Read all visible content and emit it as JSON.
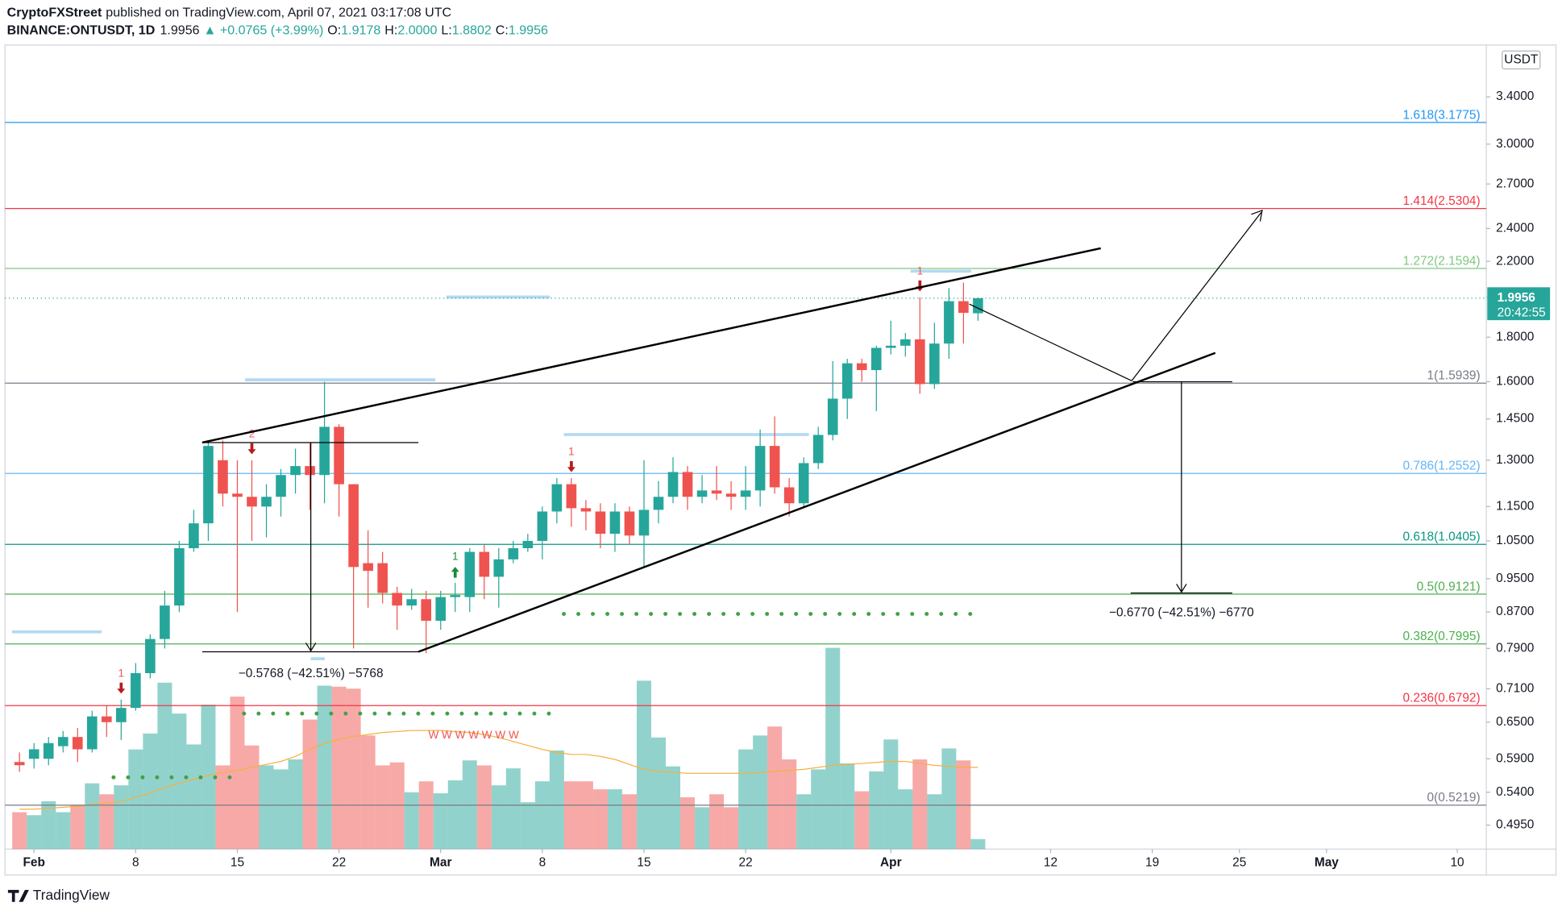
{
  "header": {
    "author": "CryptoFXStreet",
    "published": "published on TradingView.com, April 07, 2021 03:17:08 UTC",
    "symbol": "BINANCE:ONTUSDT, 1D",
    "last": "1.9956",
    "change": "▲ +0.0765 (+3.99%)",
    "ohlc_labels": [
      "O:",
      "H:",
      "L:",
      "C:"
    ],
    "ohlc_values": [
      "1.9178",
      "2.0000",
      "1.8802",
      "1.9956"
    ]
  },
  "footer": "TradingView",
  "chart_data": {
    "type": "candlestick",
    "currency": "USDT",
    "log_scale": true,
    "up_color": "#26a69a",
    "down_color": "#ef5350",
    "xlim": [
      "Jan 30",
      "May 12"
    ],
    "ylim": [
      0.4646,
      3.9
    ],
    "vlim": [
      0,
      220
    ],
    "xticks": [
      {
        "value": "Feb 1",
        "label": "Feb"
      },
      {
        "value": "Feb 8",
        "label": "8"
      },
      {
        "value": "Feb 15",
        "label": "15"
      },
      {
        "value": "Feb 22",
        "label": "22"
      },
      {
        "value": "Mar 1",
        "label": "Mar"
      },
      {
        "value": "Mar 8",
        "label": "8"
      },
      {
        "value": "Mar 15",
        "label": "15"
      },
      {
        "value": "Mar 22",
        "label": "22"
      },
      {
        "value": "Apr 1",
        "label": "Apr"
      },
      {
        "value": "Apr 12",
        "label": "12"
      },
      {
        "value": "Apr 19",
        "label": "19"
      },
      {
        "value": "Apr 25",
        "label": "25"
      },
      {
        "value": "May 1",
        "label": "May"
      },
      {
        "value": "May 10",
        "label": "10"
      }
    ],
    "yticks": [
      {
        "value": 0.495,
        "label": "0.4950"
      },
      {
        "value": 0.54,
        "label": "0.5400"
      },
      {
        "value": 0.59,
        "label": "0.5900"
      },
      {
        "value": 0.65,
        "label": "0.6500"
      },
      {
        "value": 0.71,
        "label": "0.7100"
      },
      {
        "value": 0.79,
        "label": "0.7900"
      },
      {
        "value": 0.87,
        "label": "0.8700"
      },
      {
        "value": 0.95,
        "label": "0.9500"
      },
      {
        "value": 1.05,
        "label": "1.0500"
      },
      {
        "value": 1.15,
        "label": "1.1500"
      },
      {
        "value": 1.3,
        "label": "1.3000"
      },
      {
        "value": 1.45,
        "label": "1.4500"
      },
      {
        "value": 1.6,
        "label": "1.6000"
      },
      {
        "value": 1.8,
        "label": "1.8000"
      },
      {
        "value": 2,
        "label": "2.0000"
      },
      {
        "value": 2.2,
        "label": "2.2000"
      },
      {
        "value": 2.4,
        "label": "2.4000"
      },
      {
        "value": 2.7,
        "label": "2.7000"
      },
      {
        "value": 3,
        "label": "3.0000"
      },
      {
        "value": 3.4,
        "label": "3.4000"
      }
    ],
    "x": [
      "Jan 31",
      "Feb 1",
      "Feb 2",
      "Feb 3",
      "Feb 4",
      "Feb 5",
      "Feb 6",
      "Feb 7",
      "Feb 8",
      "Feb 9",
      "Feb 10",
      "Feb 11",
      "Feb 12",
      "Feb 13",
      "Feb 14",
      "Feb 15",
      "Feb 16",
      "Feb 17",
      "Feb 18",
      "Feb 19",
      "Feb 20",
      "Feb 21",
      "Feb 22",
      "Feb 23",
      "Feb 24",
      "Feb 25",
      "Feb 26",
      "Feb 27",
      "Feb 28",
      "Mar 1",
      "Mar 2",
      "Mar 3",
      "Mar 4",
      "Mar 5",
      "Mar 6",
      "Mar 7",
      "Mar 8",
      "Mar 9",
      "Mar 10",
      "Mar 11",
      "Mar 12",
      "Mar 13",
      "Mar 14",
      "Mar 15",
      "Mar 16",
      "Mar 17",
      "Mar 18",
      "Mar 19",
      "Mar 20",
      "Mar 21",
      "Mar 22",
      "Mar 23",
      "Mar 24",
      "Mar 25",
      "Mar 26",
      "Mar 27",
      "Mar 28",
      "Mar 29",
      "Mar 30",
      "Mar 31",
      "Apr 1",
      "Apr 2",
      "Apr 3",
      "Apr 4",
      "Apr 5",
      "Apr 6",
      "Apr 7"
    ],
    "open": [
      0.585,
      0.59,
      0.59,
      0.61,
      0.625,
      0.605,
      0.66,
      0.65,
      0.675,
      0.74,
      0.81,
      0.885,
      1.03,
      1.1,
      1.3,
      1.19,
      1.18,
      1.15,
      1.18,
      1.25,
      1.28,
      1.25,
      1.42,
      1.22,
      0.99,
      0.99,
      0.915,
      0.885,
      0.9,
      0.85,
      0.905,
      0.905,
      1.02,
      0.955,
      1.0,
      1.03,
      1.05,
      1.135,
      1.22,
      1.145,
      1.135,
      1.07,
      1.135,
      1.065,
      1.14,
      1.18,
      1.26,
      1.18,
      1.2,
      1.19,
      1.18,
      1.2,
      1.35,
      1.21,
      1.16,
      1.29,
      1.39,
      1.53,
      1.68,
      1.65,
      1.75,
      1.76,
      1.79,
      1.59,
      1.77,
      1.98,
      1.9178
    ],
    "high": [
      0.6,
      0.615,
      0.625,
      0.635,
      0.64,
      0.67,
      0.68,
      0.69,
      0.76,
      0.82,
      0.92,
      1.05,
      1.14,
      1.37,
      1.37,
      1.3,
      1.3,
      1.22,
      1.27,
      1.34,
      1.36,
      1.6,
      1.43,
      1.22,
      1.08,
      1.02,
      0.93,
      0.925,
      0.92,
      0.92,
      0.94,
      1.03,
      1.04,
      1.03,
      1.05,
      1.07,
      1.15,
      1.24,
      1.24,
      1.17,
      1.16,
      1.16,
      1.15,
      1.3,
      1.23,
      1.31,
      1.28,
      1.25,
      1.28,
      1.23,
      1.28,
      1.41,
      1.46,
      1.24,
      1.31,
      1.42,
      1.69,
      1.7,
      1.7,
      1.76,
      1.88,
      1.82,
      2.0,
      1.87,
      2.05,
      2.08,
      2.0
    ],
    "low": [
      0.57,
      0.575,
      0.58,
      0.6,
      0.585,
      0.6,
      0.625,
      0.62,
      0.67,
      0.73,
      0.79,
      0.87,
      1.02,
      1.05,
      1.15,
      0.87,
      1.05,
      1.06,
      1.12,
      1.19,
      1.14,
      1.16,
      1.12,
      0.79,
      0.88,
      0.89,
      0.83,
      0.875,
      0.78,
      0.83,
      0.87,
      0.87,
      0.9,
      0.88,
      0.99,
      1.02,
      1.0,
      1.1,
      1.09,
      1.08,
      1.03,
      1.02,
      1.04,
      0.98,
      1.1,
      1.16,
      1.14,
      1.16,
      1.17,
      1.14,
      1.14,
      1.15,
      1.19,
      1.12,
      1.15,
      1.27,
      1.37,
      1.45,
      1.6,
      1.48,
      1.72,
      1.71,
      1.55,
      1.57,
      1.7,
      1.77,
      1.8802
    ],
    "close": [
      0.58,
      0.605,
      0.615,
      0.625,
      0.605,
      0.66,
      0.65,
      0.675,
      0.74,
      0.81,
      0.885,
      1.03,
      1.1,
      1.35,
      1.19,
      1.18,
      1.15,
      1.18,
      1.25,
      1.28,
      1.25,
      1.42,
      1.22,
      0.98,
      0.97,
      0.915,
      0.885,
      0.9,
      0.85,
      0.905,
      0.91,
      1.02,
      0.955,
      1.0,
      1.03,
      1.05,
      1.135,
      1.22,
      1.145,
      1.135,
      1.07,
      1.135,
      1.065,
      1.14,
      1.18,
      1.26,
      1.18,
      1.2,
      1.19,
      1.18,
      1.2,
      1.35,
      1.21,
      1.16,
      1.29,
      1.39,
      1.53,
      1.68,
      1.65,
      1.75,
      1.76,
      1.79,
      1.59,
      1.77,
      1.98,
      1.92,
      1.9956
    ],
    "volume": [
      37,
      34,
      48,
      37,
      44,
      66,
      55,
      64,
      100,
      116,
      167,
      136,
      105,
      145,
      84,
      153,
      104,
      84,
      80,
      90,
      130,
      164,
      163,
      161,
      114,
      84,
      87,
      57,
      68,
      56,
      69,
      89,
      84,
      64,
      81,
      47,
      68,
      99,
      68,
      68,
      60,
      60,
      55,
      169,
      112,
      83,
      52,
      42,
      55,
      42,
      100,
      114,
      123,
      90,
      55,
      80,
      202,
      86,
      58,
      78,
      110,
      60,
      90,
      55,
      101,
      89,
      10
    ],
    "volume_ma": [
      40,
      40,
      41,
      42,
      43,
      45,
      46,
      48,
      52,
      56,
      62,
      66,
      70,
      74,
      77,
      79,
      82,
      85,
      88,
      93,
      100,
      106,
      110,
      113,
      115,
      117,
      118,
      119,
      119,
      119,
      118,
      117,
      115,
      112,
      108,
      104,
      100,
      97,
      95,
      95,
      93,
      90,
      85,
      80,
      78,
      77,
      76,
      76,
      76,
      76,
      76,
      77,
      78,
      79,
      80,
      82,
      84,
      85,
      86,
      87,
      88,
      88,
      86,
      84,
      83,
      82,
      82
    ],
    "volume_ma_color": "#f5b041",
    "last_price": 1.9956,
    "countdown": "20:42:55",
    "fib_levels": [
      {
        "value": 3.1775,
        "label": "1.618(3.1775)",
        "color": "#2196f3"
      },
      {
        "value": 2.5304,
        "label": "1.414(2.5304)",
        "color": "#f23645"
      },
      {
        "value": 2.1594,
        "label": "1.272(2.1594)",
        "color": "#81c784"
      },
      {
        "value": 1.5939,
        "label": "1(1.5939)",
        "color": "#787b86"
      },
      {
        "value": 1.2552,
        "label": "0.786(1.2552)",
        "color": "#64b5f6"
      },
      {
        "value": 1.0405,
        "label": "0.618(1.0405)",
        "color": "#089981"
      },
      {
        "value": 0.9121,
        "label": "0.5(0.9121)",
        "color": "#4caf50"
      },
      {
        "value": 0.7995,
        "label": "0.382(0.7995)",
        "color": "#4caf50"
      },
      {
        "value": 0.6792,
        "label": "0.236(0.6792)",
        "color": "#f23645"
      },
      {
        "value": 0.5219,
        "label": "0(0.5219)",
        "color": "#787b86"
      }
    ],
    "signals": [
      {
        "x": "Feb 7",
        "label": "1",
        "dir": "down"
      },
      {
        "x": "Feb 16",
        "label": "2",
        "dir": "down"
      },
      {
        "x": "Mar 2",
        "label": "1",
        "dir": "up"
      },
      {
        "x": "Mar 10",
        "label": "1",
        "dir": "down"
      },
      {
        "x": "Apr 3",
        "label": "1",
        "dir": "down"
      }
    ],
    "w_marks": "W W W W W W W",
    "measures": [
      "−0.5768 (−42.51%) −5768",
      "−0.6770 (−42.51%) −6770"
    ]
  }
}
